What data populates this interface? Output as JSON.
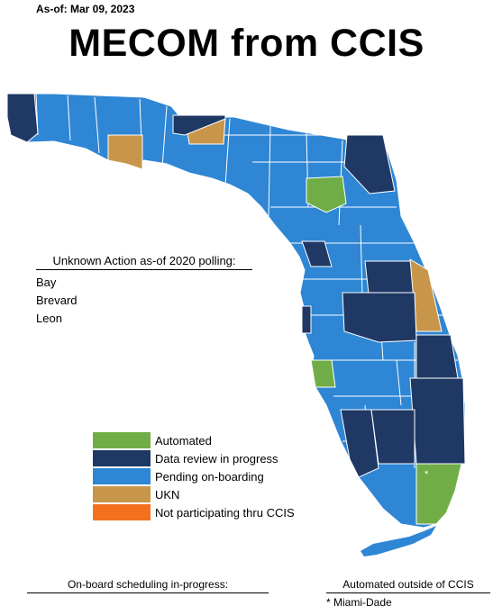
{
  "header": {
    "as_of": "As-of: Mar 09, 2023",
    "title": "MECOM from CCIS"
  },
  "colors": {
    "automated": "#70ad47",
    "data_review": "#1f3864",
    "pending": "#2e86d4",
    "ukn": "#c8964a",
    "not_participating": "#f4701e",
    "border": "#ffffff"
  },
  "unknown": {
    "heading": "Unknown Action as-of 2020 polling:",
    "counties": [
      "Bay",
      "Brevard",
      "Leon"
    ]
  },
  "legend": [
    {
      "label": "Automated",
      "color": "#70ad47"
    },
    {
      "label": "Data review in progress",
      "color": "#1f3864"
    },
    {
      "label": "Pending on-boarding",
      "color": "#2e86d4"
    },
    {
      "label": "UKN",
      "color": "#c8964a"
    },
    {
      "label": "Not participating thru CCIS",
      "color": "#f4701e"
    }
  ],
  "map": {
    "county_mark": "*"
  },
  "onboard": {
    "heading": "On-board scheduling in-progress:"
  },
  "automated_outside": {
    "heading": "Automated outside of CCIS",
    "counties": [
      "Miami-Dade"
    ]
  }
}
